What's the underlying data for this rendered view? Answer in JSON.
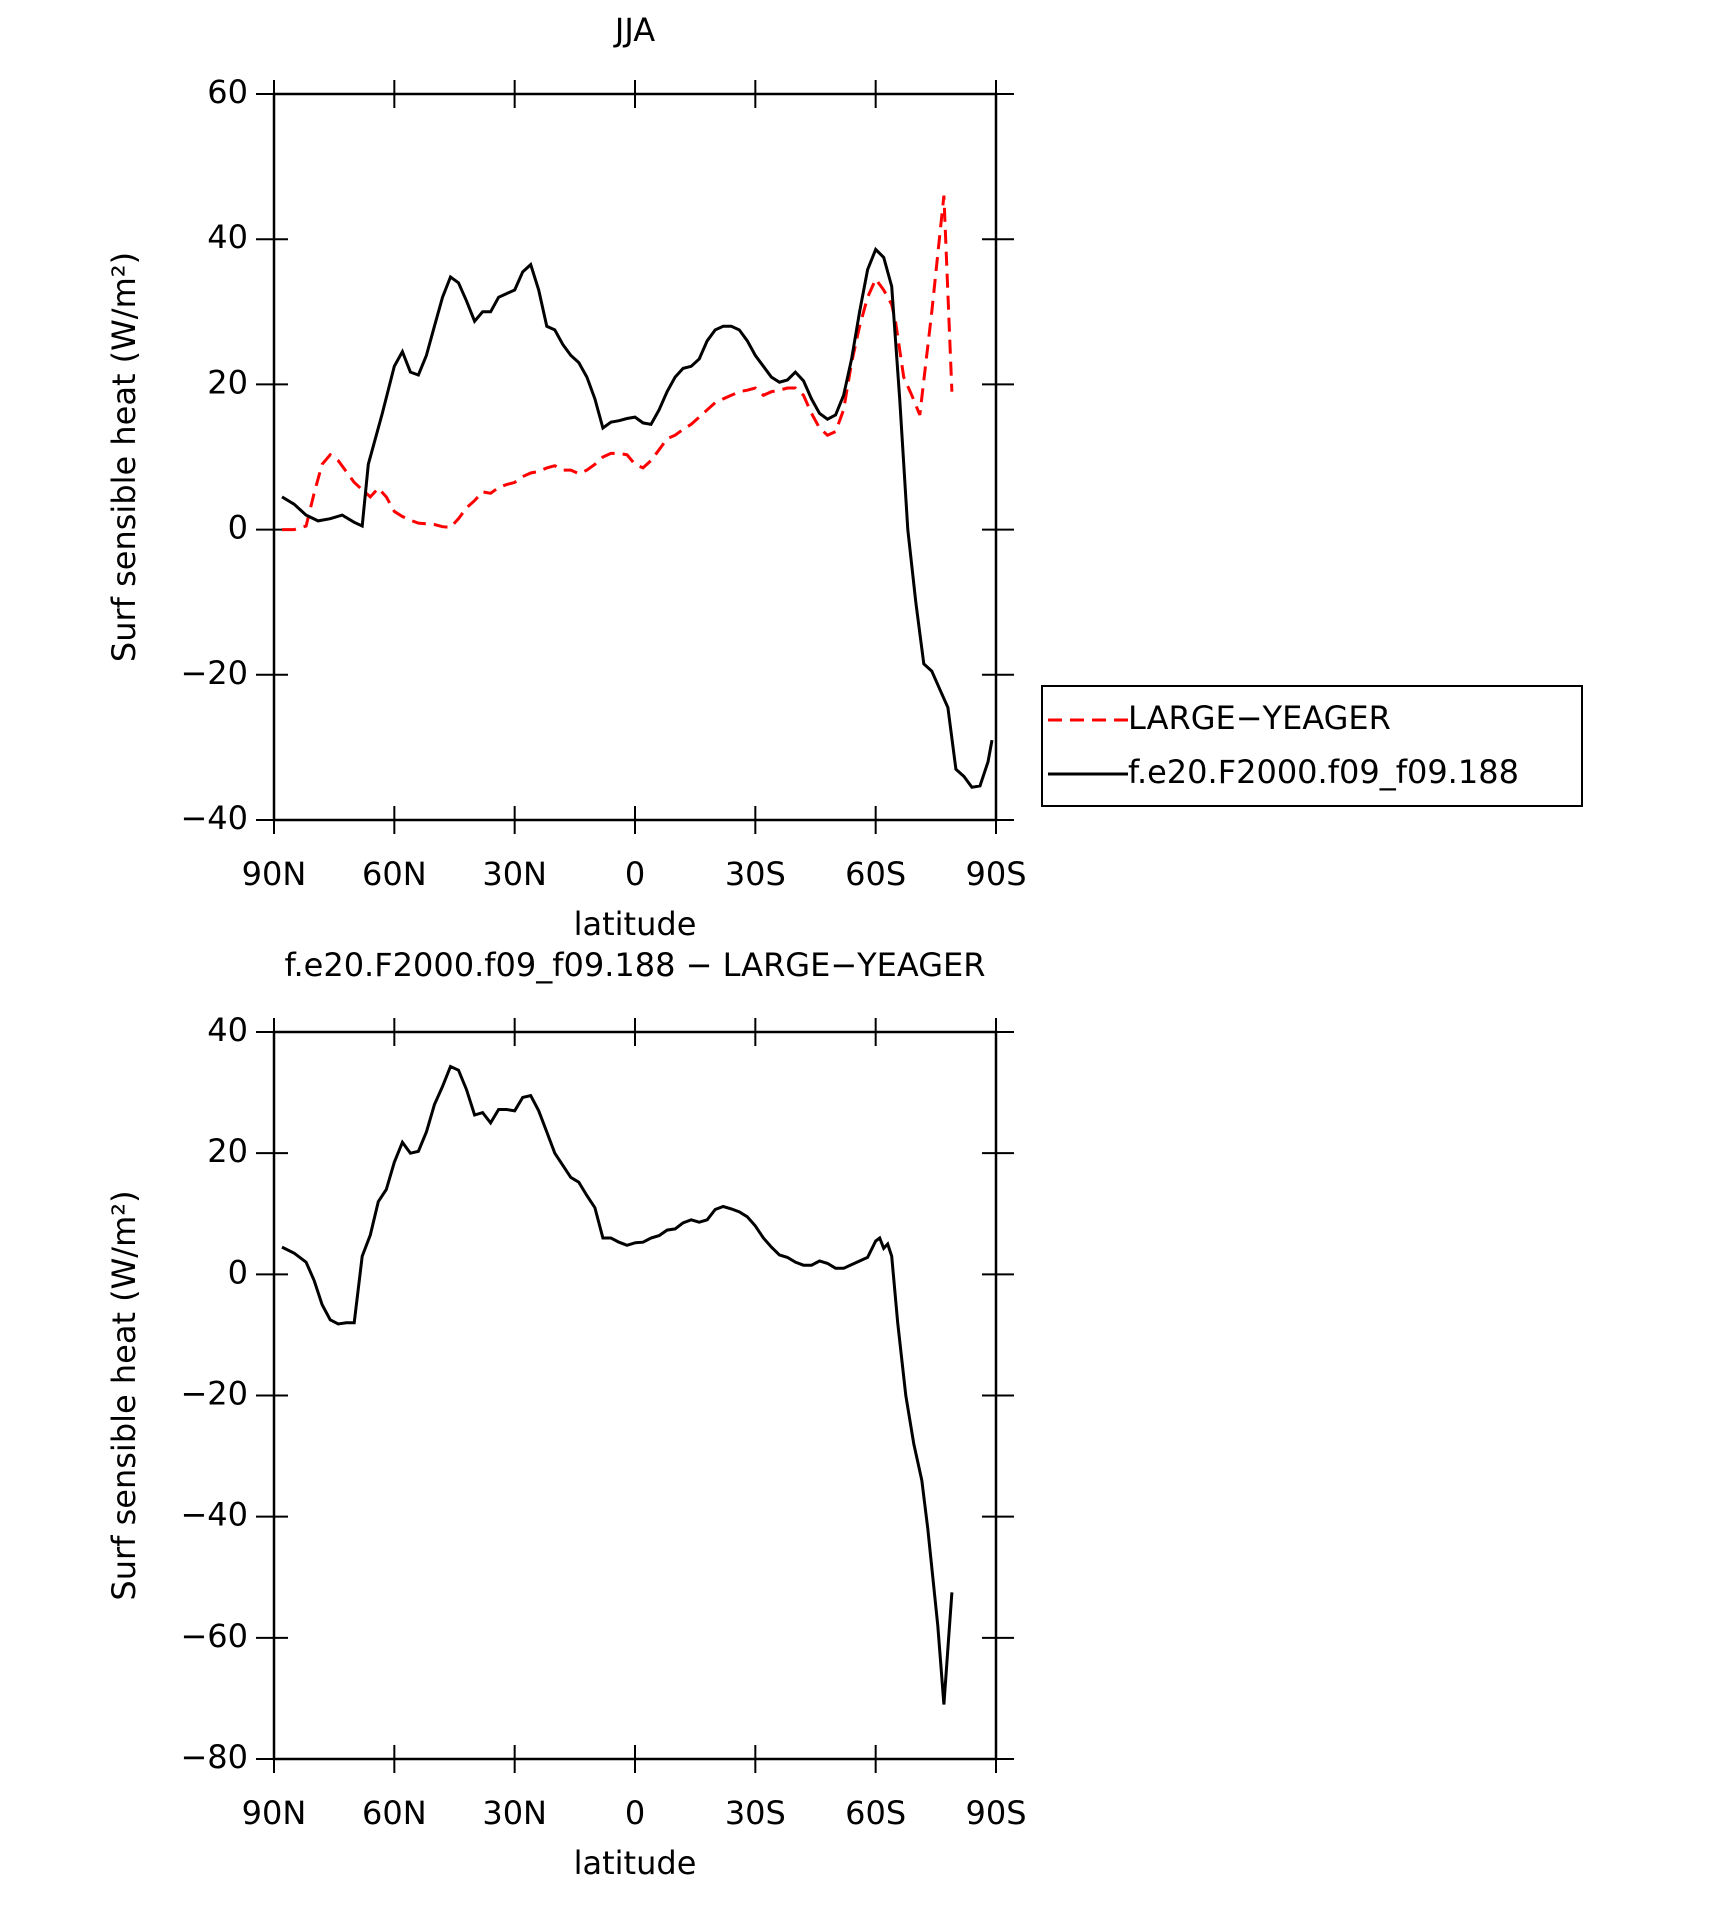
{
  "chart_data": [
    {
      "type": "line",
      "title": "JJA",
      "xlabel": "latitude",
      "ylabel": "Surf sensible heat (W/m²)",
      "xlim": [
        90,
        -90
      ],
      "xticks": [
        {
          "value": 90,
          "label": "90N"
        },
        {
          "value": 60,
          "label": "60N"
        },
        {
          "value": 30,
          "label": "30N"
        },
        0,
        {
          "value": -30,
          "label": "30S"
        },
        {
          "value": -60,
          "label": "60S"
        },
        {
          "value": -90,
          "label": "90S"
        }
      ],
      "ylim": [
        -40,
        60
      ],
      "yticks": [
        {
          "value": -40,
          "label": "−40"
        },
        {
          "value": -20,
          "label": "−20"
        },
        0,
        20,
        40,
        60
      ],
      "legend": "right",
      "series": [
        {
          "name": "LARGE−YEAGER",
          "color": "#ff0000",
          "dash": true,
          "x": [
            88,
            85,
            82,
            80,
            78,
            76,
            74,
            72,
            70,
            68,
            66,
            64,
            62,
            60,
            58,
            56,
            54,
            52,
            50,
            48,
            46,
            44,
            42,
            40,
            38,
            36,
            34,
            32,
            30,
            28,
            26,
            24,
            22,
            20,
            18,
            16,
            14,
            12,
            10,
            8,
            6,
            4,
            2,
            0,
            -2,
            -4,
            -6,
            -8,
            -10,
            -12,
            -14,
            -16,
            -18,
            -20,
            -22,
            -24,
            -26,
            -28,
            -30,
            -32,
            -34,
            -36,
            -38,
            -40,
            -42,
            -44,
            -46,
            -48,
            -50,
            -52,
            -54,
            -56,
            -58,
            -60,
            -62,
            -64,
            -65,
            -67,
            -69,
            -71,
            -74,
            -77,
            -79
          ],
          "values": [
            0,
            0,
            0.5,
            5,
            9,
            10.3,
            9.5,
            8,
            6.5,
            5.5,
            4.5,
            5.7,
            4.5,
            2.5,
            1.8,
            1.3,
            0.9,
            0.8,
            0.7,
            0.4,
            0.3,
            1.5,
            3,
            4,
            5.2,
            5,
            5.8,
            6.2,
            6.5,
            7.3,
            7.8,
            8,
            8.5,
            8.8,
            8.2,
            8.2,
            7.7,
            8.2,
            9,
            10,
            10.5,
            10.5,
            10.3,
            9,
            8.5,
            9.5,
            11,
            12.5,
            13,
            13.8,
            14.5,
            15.5,
            16.5,
            17.5,
            18,
            18.5,
            19,
            19.2,
            19.5,
            18.5,
            19,
            19.2,
            19.5,
            19.5,
            18.5,
            16,
            14,
            13,
            13.5,
            16.5,
            23,
            28,
            32,
            34.5,
            33,
            31,
            28.5,
            21,
            18.5,
            15.8,
            30,
            46,
            19
          ]
        },
        {
          "name": "f.e20.F2000.f09_f09.188",
          "color": "#000000",
          "dash": false,
          "x": [
            88,
            85,
            82,
            79,
            76,
            73,
            70,
            68,
            66.5,
            63,
            60,
            58,
            56,
            54,
            52,
            50,
            48,
            46,
            44,
            42,
            40,
            38,
            36,
            34,
            32,
            30,
            28,
            26,
            24,
            22,
            20,
            18,
            16,
            14,
            12,
            10,
            8,
            6,
            4,
            2,
            0,
            -2,
            -4,
            -6,
            -8,
            -10,
            -12,
            -14,
            -16,
            -18,
            -20,
            -22,
            -24,
            -26,
            -28,
            -30,
            -32,
            -34,
            -36,
            -38,
            -40,
            -42,
            -44,
            -46,
            -48,
            -50,
            -52,
            -54,
            -56,
            -58,
            -60,
            -62,
            -64,
            -66,
            -68,
            -70,
            -72,
            -74,
            -76,
            -78,
            -80,
            -82,
            -84,
            -86,
            -88,
            -89
          ],
          "values": [
            4.5,
            3.5,
            2,
            1.2,
            1.5,
            2,
            1,
            0.5,
            9,
            16,
            22.5,
            24.5,
            21.7,
            21.3,
            24,
            28,
            32,
            34.8,
            34,
            31.5,
            28.7,
            30,
            30,
            32,
            32.5,
            33,
            35.5,
            36.5,
            33,
            28,
            27.5,
            25.5,
            24,
            23,
            21,
            18,
            14,
            14.8,
            15,
            15.3,
            15.5,
            14.7,
            14.5,
            16.5,
            19,
            21,
            22.2,
            22.5,
            23.5,
            26,
            27.5,
            28,
            28,
            27.5,
            26,
            24,
            22.5,
            21,
            20.3,
            20.6,
            21.7,
            20.5,
            18,
            16,
            15.2,
            15.8,
            18.5,
            23.5,
            30,
            35.8,
            38.6,
            37.5,
            33.5,
            18,
            0,
            -10,
            -18.5,
            -19.5,
            -22,
            -24.5,
            -33,
            -34,
            -35.5,
            -35.3,
            -32,
            -29
          ]
        }
      ]
    },
    {
      "type": "line",
      "title": "f.e20.F2000.f09_f09.188 − LARGE−YEAGER",
      "xlabel": "latitude",
      "ylabel": "Surf sensible heat (W/m²)",
      "xlim": [
        90,
        -90
      ],
      "xticks": [
        {
          "value": 90,
          "label": "90N"
        },
        {
          "value": 60,
          "label": "60N"
        },
        {
          "value": 30,
          "label": "30N"
        },
        0,
        {
          "value": -30,
          "label": "30S"
        },
        {
          "value": -60,
          "label": "60S"
        },
        {
          "value": -90,
          "label": "90S"
        }
      ],
      "ylim": [
        -80,
        40
      ],
      "yticks": [
        {
          "value": -80,
          "label": "−80"
        },
        {
          "value": -60,
          "label": "−60"
        },
        {
          "value": -40,
          "label": "−40"
        },
        {
          "value": -20,
          "label": "−20"
        },
        0,
        20,
        40
      ],
      "series": [
        {
          "color": "#000000",
          "dash": false,
          "x": [
            88,
            85,
            82,
            80,
            78,
            76,
            74,
            72,
            70,
            68,
            66,
            64,
            62,
            60,
            58,
            56,
            54,
            52,
            50,
            48,
            46,
            44,
            42,
            40,
            38,
            36,
            34,
            32,
            30,
            28,
            26,
            24,
            22,
            20,
            18,
            16,
            14,
            12,
            10,
            8,
            6,
            4,
            2,
            0,
            -2,
            -4,
            -6,
            -8,
            -10,
            -12,
            -14,
            -16,
            -18,
            -20,
            -22,
            -24,
            -26,
            -28,
            -30,
            -32,
            -34,
            -36,
            -38,
            -40,
            -42,
            -44,
            -46,
            -48,
            -50,
            -52,
            -54,
            -56,
            -58,
            -60,
            -61,
            -62,
            -63,
            -64,
            -65.5,
            -67.5,
            -69.5,
            -71.5,
            -73,
            -75.5,
            -77,
            -79
          ],
          "values": [
            4.5,
            3.5,
            2,
            -1,
            -5,
            -7.5,
            -8.2,
            -8,
            -8,
            3,
            6.5,
            12,
            14,
            18.5,
            21.8,
            20,
            20.3,
            23.5,
            28,
            31,
            34.3,
            33.7,
            30.5,
            26.3,
            26.7,
            25,
            27.2,
            27.2,
            27,
            29.2,
            29.5,
            27,
            23.5,
            20,
            18,
            16,
            15.2,
            13,
            11,
            6,
            6,
            5.3,
            4.8,
            5.2,
            5.3,
            6,
            6.4,
            7.3,
            7.5,
            8.5,
            9,
            8.6,
            9,
            10.7,
            11.2,
            10.8,
            10.3,
            9.5,
            8,
            6,
            4.5,
            3.2,
            2.8,
            2,
            1.5,
            1.5,
            2.2,
            1.8,
            1,
            1,
            1.6,
            2.2,
            2.8,
            5.5,
            6,
            4.3,
            5,
            3,
            -8,
            -20,
            -28,
            -34,
            -42,
            -58,
            -71,
            -52.5
          ]
        }
      ]
    }
  ]
}
